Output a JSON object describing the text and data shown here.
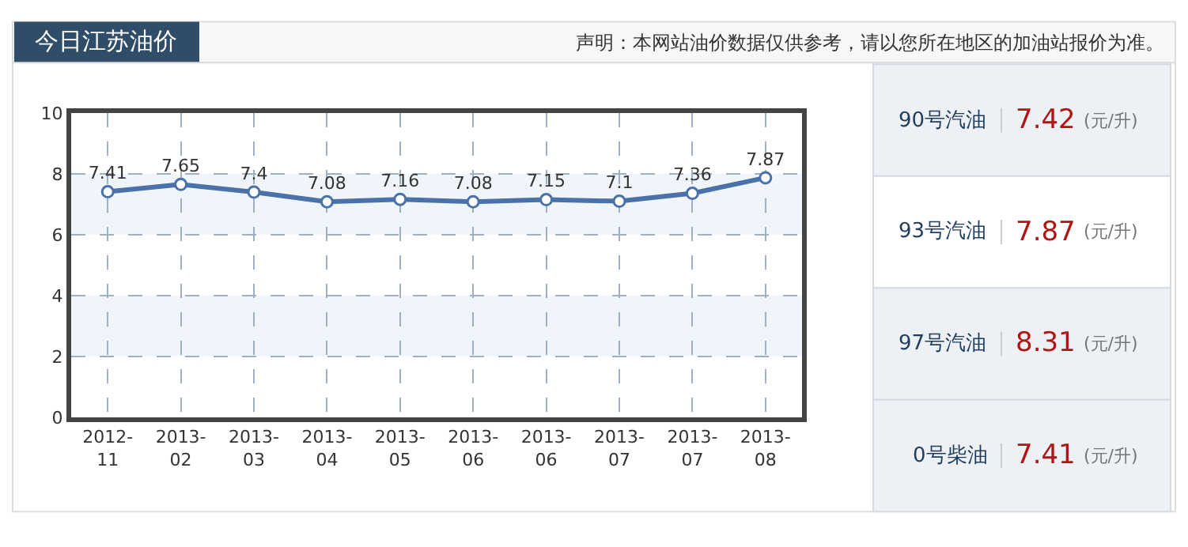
{
  "chart_data": [
    {
      "type": "line",
      "title": "今日江苏油价",
      "subtitle": "声明：本网站油价数据仅供参考，请以您所在地区的加油站报价为准。",
      "categories": [
        "2012-11",
        "2013-02",
        "2013-03",
        "2013-04",
        "2013-05",
        "2013-06",
        "2013-06",
        "2013-07",
        "2013-07",
        "2013-08"
      ],
      "series": [
        {
          "color": "#4a72a8",
          "values": [
            7.41,
            7.65,
            7.4,
            7.08,
            7.16,
            7.08,
            7.15,
            7.1,
            7.36,
            7.87
          ]
        }
      ],
      "ylim": [
        0,
        10
      ],
      "yticks": [
        0,
        2,
        4,
        6,
        8,
        10
      ],
      "grid": true,
      "marker": "circle",
      "line_style": "solid",
      "data_labels": true,
      "bands": [
        {
          "axis": "y",
          "from": 2,
          "to": 4,
          "color": "#f0f5fc"
        },
        {
          "axis": "y",
          "from": 6,
          "to": 8,
          "color": "#f0f5fc"
        }
      ]
    },
    {
      "type": "other",
      "annotations": [
        "90号汽油",
        "7.42",
        "(元/升)",
        "93号汽油",
        "7.87",
        "(元/升)",
        "97号汽油",
        "8.31",
        "(元/升)",
        "0号柴油",
        "7.41",
        "(元/升)"
      ]
    }
  ]
}
